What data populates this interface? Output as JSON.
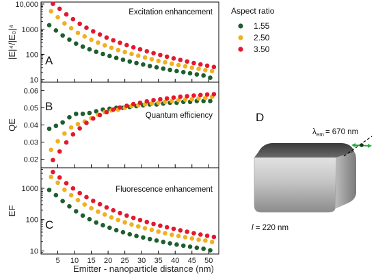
{
  "chart_data": {
    "type": "scatter",
    "x": [
      3,
      5,
      7,
      9,
      11,
      13,
      15,
      17,
      19,
      21,
      23,
      25,
      27,
      29,
      31,
      33,
      35,
      37,
      39,
      41,
      43,
      45,
      47,
      49,
      51
    ],
    "xlabel": "Emitter - nanoparticle distance (nm)",
    "xlim": [
      0,
      53
    ],
    "xticks": [
      5,
      10,
      15,
      20,
      25,
      30,
      35,
      40,
      45,
      50
    ],
    "legend": {
      "title": "Aspect ratio",
      "placement": "top-right",
      "entries": [
        {
          "label": "1.55",
          "color": "#1e5e2f"
        },
        {
          "label": "2.50",
          "color": "#f0b021"
        },
        {
          "label": "3.50",
          "color": "#e2192d"
        }
      ]
    },
    "panels": [
      {
        "letter": "A",
        "annotation": "Excitation enhancement",
        "ylabel": "|E|⁴/|E₀|⁴",
        "scale": "log",
        "ylim": [
          8,
          12000
        ],
        "yticks": [
          10,
          100,
          1000,
          10000
        ],
        "yticklabels": [
          "10",
          "100",
          "1000",
          "10,000"
        ],
        "series": [
          {
            "name": "1.55",
            "values": [
              1450,
              900,
              570,
              390,
              270,
              205,
              160,
              128,
              104,
              87,
              73,
              62,
              53,
              46,
              40,
              35,
              31,
              27.5,
              24.5,
              22,
              20,
              18,
              16.2,
              14.7,
              12
            ]
          },
          {
            "name": "2.50",
            "values": [
              5200,
              3000,
              1700,
              1100,
              720,
              520,
              385,
              295,
              230,
              185,
              150,
              125,
              105,
              89,
              76,
              65,
              56,
              49,
              43,
              38,
              34,
              30,
              27,
              24,
              22
            ]
          },
          {
            "name": "3.50",
            "values": [
              10200,
              6500,
              3900,
              2500,
              1650,
              1150,
              830,
              620,
              470,
              365,
              290,
              235,
              192,
              160,
              134,
              113,
              96,
              82,
              70,
              61,
              53,
              46,
              40.5,
              36,
              32
            ]
          }
        ]
      },
      {
        "letter": "B",
        "annotation": "Quantum efficiency",
        "ylabel": "QE",
        "scale": "linear",
        "ylim": [
          0.015,
          0.065
        ],
        "yticks": [
          0.02,
          0.03,
          0.04,
          0.05,
          0.06
        ],
        "yticklabels": [
          "0.02",
          "0.03",
          "0.04",
          "0.05",
          "0.06"
        ],
        "series": [
          {
            "name": "1.55",
            "values": [
              0.0378,
              0.0395,
              0.0415,
              0.0445,
              0.0465,
              0.0465,
              0.047,
              0.048,
              0.049,
              0.0495,
              0.05,
              0.05,
              0.0505,
              0.051,
              0.0515,
              0.052,
              0.052,
              0.0525,
              0.053,
              0.053,
              0.0535,
              0.0535,
              0.054,
              0.054,
              0.054
            ]
          },
          {
            "name": "2.50",
            "values": [
              0.0255,
              0.0305,
              0.035,
              0.0385,
              0.0405,
              0.042,
              0.044,
              0.046,
              0.0475,
              0.0485,
              0.049,
              0.05,
              0.051,
              0.0515,
              0.052,
              0.0525,
              0.053,
              0.0535,
              0.054,
              0.0545,
              0.0548,
              0.055,
              0.0555,
              0.0558,
              0.0565
            ]
          },
          {
            "name": "3.50",
            "values": [
              0.0195,
              0.0245,
              0.0298,
              0.0345,
              0.038,
              0.0412,
              0.0438,
              0.0458,
              0.0475,
              0.049,
              0.0502,
              0.0512,
              0.0522,
              0.053,
              0.0538,
              0.0545,
              0.055,
              0.0555,
              0.056,
              0.0565,
              0.0568,
              0.0572,
              0.0575,
              0.0578,
              0.058
            ]
          }
        ]
      },
      {
        "letter": "C",
        "annotation": "Fluorescence enhancement",
        "ylabel": "EF",
        "scale": "log",
        "ylim": [
          8,
          4500
        ],
        "yticks": [
          10,
          100,
          1000
        ],
        "yticklabels": [
          "10",
          "100",
          "1000"
        ],
        "series": [
          {
            "name": "1.55",
            "values": [
              880,
              600,
              390,
              265,
              185,
              135,
              103,
              81,
              66,
              55,
              46,
              39.5,
              34,
              30,
              27,
              24,
              21.5,
              19.5,
              17.5,
              16,
              14.8,
              13.7,
              12.7,
              11.8,
              10.5
            ]
          },
          {
            "name": "2.50",
            "values": [
              2300,
              1500,
              900,
              600,
              420,
              305,
              230,
              180,
              145,
              118,
              98,
              82,
              70,
              61,
              53,
              47,
              41.5,
              37,
              33,
              30,
              27.5,
              25,
              23,
              21.5,
              19.5
            ]
          },
          {
            "name": "3.50",
            "values": [
              3300,
              2200,
              1450,
              990,
              700,
              520,
              395,
              310,
              245,
              198,
              162,
              135,
              114,
              97,
              84,
              73,
              64,
              57,
              51,
              45.5,
              41,
              37,
              33.5,
              30.5,
              28
            ]
          }
        ]
      }
    ]
  },
  "diagram": {
    "letter": "D",
    "wavelength_label": "= 670 nm",
    "lambda_symbol": "λ",
    "lambda_subscript": "em",
    "length_symbol": "l",
    "length_label": " = 220 nm"
  }
}
